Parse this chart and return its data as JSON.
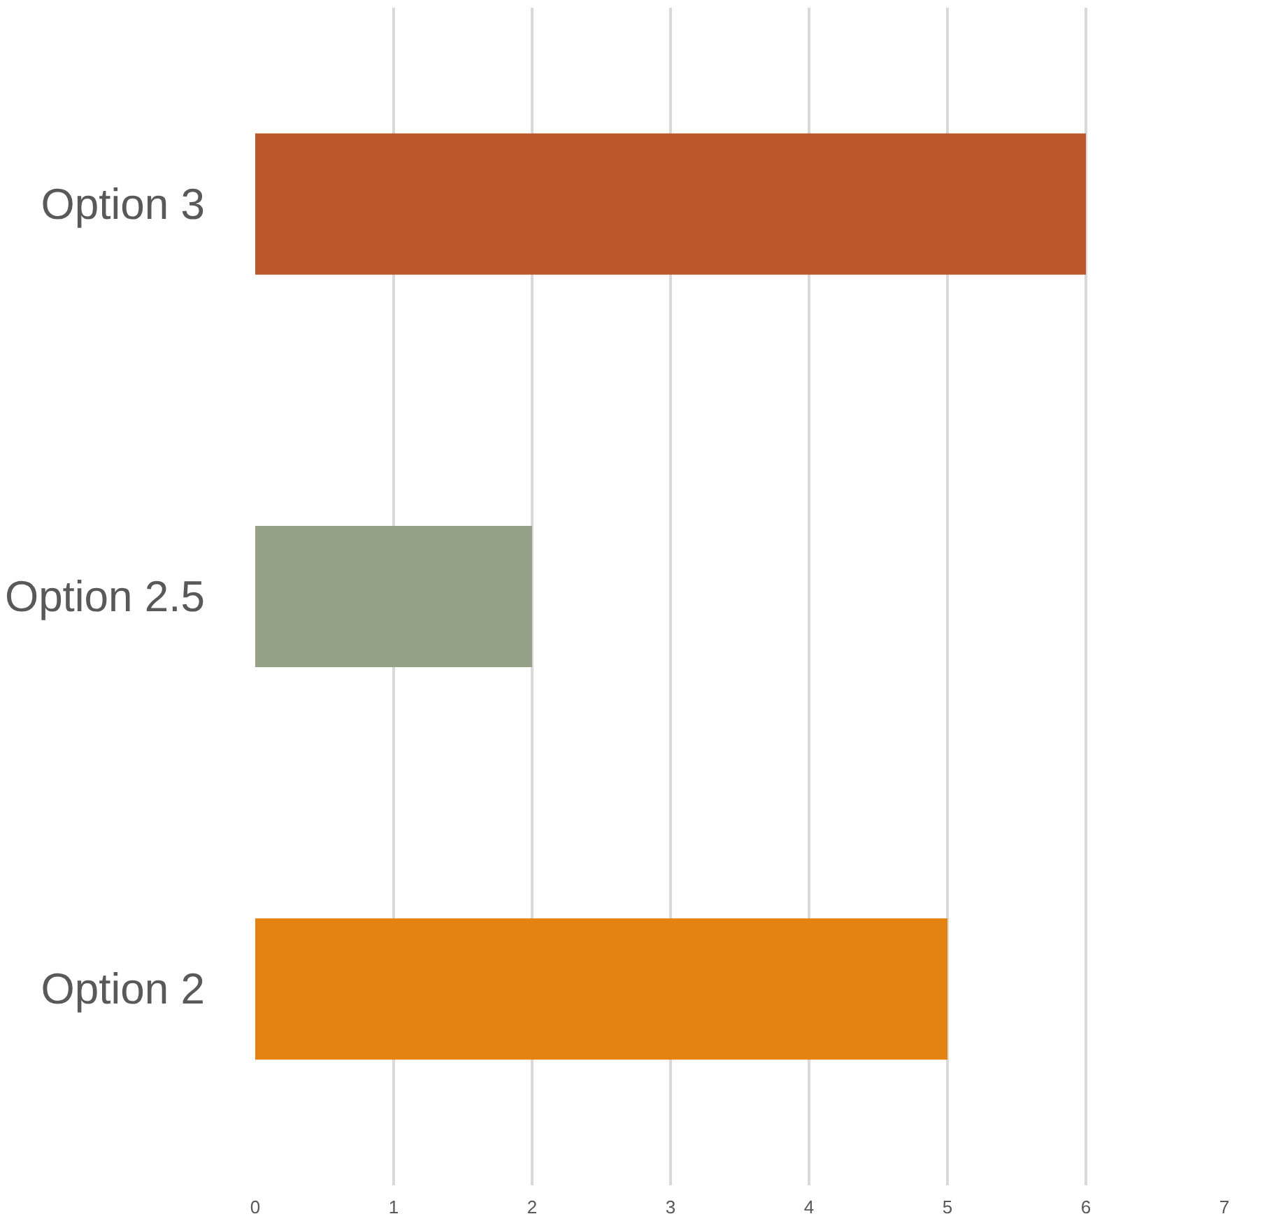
{
  "chart_data": {
    "type": "bar",
    "orientation": "horizontal",
    "categories": [
      "Option 3",
      "Option 2.5",
      "Option 2"
    ],
    "values": [
      6,
      2,
      5
    ],
    "colors": [
      "#bc582c",
      "#96a288",
      "#e58312"
    ],
    "xlim": [
      0,
      7
    ],
    "xticks": [
      0,
      1,
      2,
      3,
      4,
      5,
      6,
      7
    ],
    "grid": "x"
  }
}
